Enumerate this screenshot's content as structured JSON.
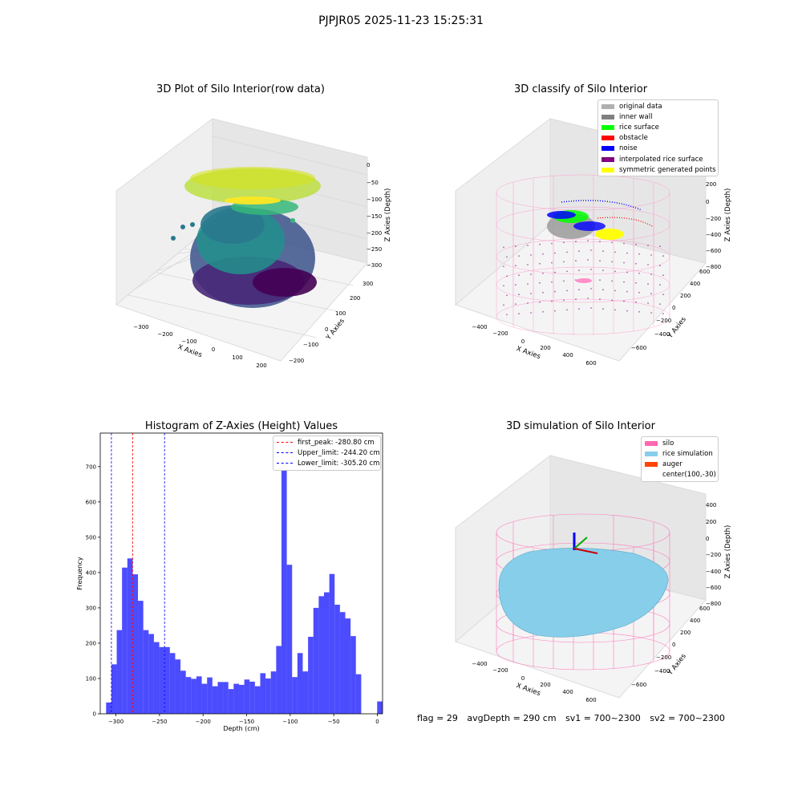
{
  "figure_title": "PJPJR05 2025-11-23 15:25:31",
  "panels": {
    "raw": {
      "title": "3D Plot of Silo Interior(row data)",
      "xlabel": "X Axies",
      "ylabel": "Y Axies",
      "zlabel": "Z Axies (Depth)",
      "x_ticks": [
        "−300",
        "−200",
        "−100",
        "0",
        "100",
        "200"
      ],
      "y_ticks": [
        "−200",
        "−100",
        "0",
        "100",
        "200",
        "300"
      ],
      "z_ticks": [
        "0",
        "−50",
        "−100",
        "−150",
        "−200",
        "−250",
        "−300"
      ]
    },
    "classify": {
      "title": "3D classify of Silo Interior",
      "xlabel": "X Axies",
      "ylabel": "Y Axies",
      "zlabel": "Z Axies (Depth)",
      "x_ticks": [
        "−400",
        "−200",
        "0",
        "200",
        "400",
        "600"
      ],
      "y_ticks": [
        "−600",
        "−400",
        "−200",
        "0",
        "200",
        "400",
        "600"
      ],
      "z_ticks": [
        "400",
        "200",
        "0",
        "−200",
        "−400",
        "−600",
        "−800"
      ],
      "legend": [
        {
          "label": "original data",
          "color": "#b0b0b0"
        },
        {
          "label": "inner wall",
          "color": "#808080"
        },
        {
          "label": "rice surface",
          "color": "#00ff00"
        },
        {
          "label": "obstacle",
          "color": "#ff0000"
        },
        {
          "label": "noise",
          "color": "#0000ff"
        },
        {
          "label": "interpolated rice surface",
          "color": "#800080"
        },
        {
          "label": "symmetric generated points",
          "color": "#ffff00"
        }
      ]
    },
    "simulation": {
      "title": "3D simulation of Silo Interior",
      "xlabel": "X Axies",
      "ylabel": "Y Axies",
      "zlabel": "Z Axies (Depth)",
      "x_ticks": [
        "−400",
        "−200",
        "0",
        "200",
        "400",
        "600"
      ],
      "y_ticks": [
        "−600",
        "−400",
        "−200",
        "0",
        "200",
        "400",
        "600"
      ],
      "z_ticks": [
        "400",
        "200",
        "0",
        "−200",
        "−400",
        "−600",
        "−800"
      ],
      "legend": [
        {
          "label": "silo",
          "color": "#ff69b4"
        },
        {
          "label": "rice simulation",
          "color": "#87ceeb"
        },
        {
          "label": "auger",
          "color": "#ff4500"
        },
        {
          "label": "center(100,-30)",
          "color": ""
        }
      ]
    }
  },
  "chart_data": {
    "type": "bar",
    "title": "Histogram of Z-Axies (Height) Values",
    "xlabel": "Depth (cm)",
    "ylabel": "Frequency",
    "xlim": [
      -318,
      6
    ],
    "ylim": [
      0,
      795
    ],
    "bar_color": "#0000ff",
    "bar_opacity": 0.7,
    "bin_width": 6.1,
    "bins_start": [
      -311.3,
      -305.2,
      -299.1,
      -293.0,
      -286.9,
      -280.8,
      -274.7,
      -268.6,
      -262.5,
      -256.4,
      -250.3,
      -244.2,
      -238.1,
      -232.0,
      -225.9,
      -219.8,
      -213.7,
      -207.6,
      -201.5,
      -195.4,
      -189.3,
      -183.2,
      -177.1,
      -171.0,
      -164.9,
      -158.8,
      -152.7,
      -146.6,
      -140.5,
      -134.4,
      -128.3,
      -122.2,
      -116.1,
      -110.0,
      -103.9,
      -97.8,
      -91.7,
      -85.6,
      -79.5,
      -73.4,
      -67.3,
      -61.2,
      -55.1,
      -49.0,
      -42.9,
      -36.8,
      -30.7,
      -24.6,
      -18.5,
      -12.4,
      -6.3,
      -0.2
    ],
    "values": [
      32,
      140,
      237,
      414,
      440,
      395,
      320,
      237,
      226,
      203,
      189,
      189,
      172,
      154,
      122,
      104,
      99,
      106,
      85,
      103,
      78,
      90,
      90,
      70,
      85,
      82,
      97,
      91,
      78,
      115,
      100,
      120,
      192,
      760,
      422,
      104,
      172,
      120,
      218,
      300,
      333,
      344,
      396,
      309,
      288,
      270,
      220,
      112,
      0,
      0,
      0,
      35
    ],
    "x_ticks": [
      -300,
      -250,
      -200,
      -150,
      -100,
      -50,
      0
    ],
    "x_tick_labels": [
      "−300",
      "−250",
      "−200",
      "−150",
      "−100",
      "−50",
      "0"
    ],
    "y_ticks": [
      0,
      100,
      200,
      300,
      400,
      500,
      600,
      700
    ],
    "reference_lines": [
      {
        "x": -280.8,
        "color": "#ff0000",
        "label": "first_peak: -280.80 cm"
      },
      {
        "x": -244.2,
        "color": "#0000ff",
        "label": "Upper_limit: -244.20 cm"
      },
      {
        "x": -305.2,
        "color": "#0000ff",
        "label": "Lower_limit: -305.20 cm"
      }
    ],
    "legend_position": "top-right",
    "grid": false
  },
  "footer": {
    "flag": "flag = 29",
    "avg_depth": "avgDepth = 290 cm",
    "sv1": "sv1 = 700~2300",
    "sv2": "sv2 = 700~2300"
  }
}
